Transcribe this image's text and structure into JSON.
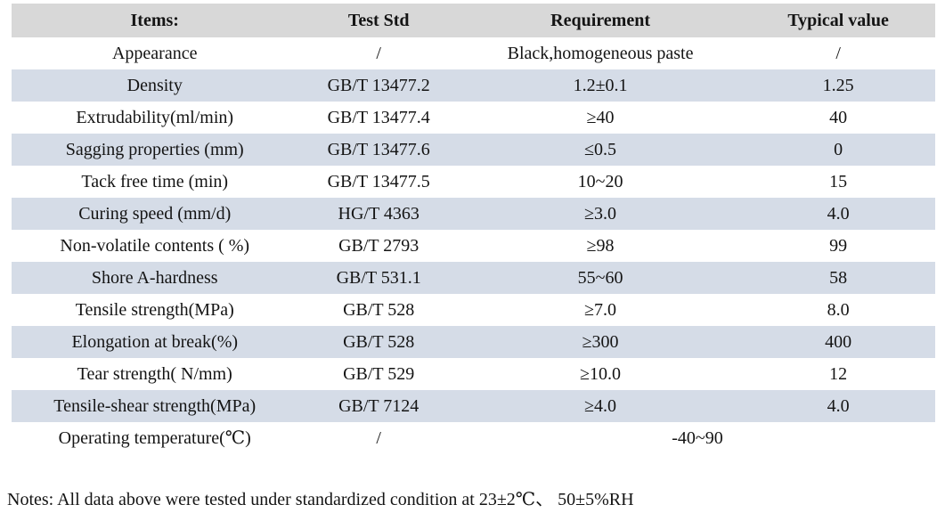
{
  "table": {
    "columns": [
      {
        "label": "Items:"
      },
      {
        "label": "Test Std"
      },
      {
        "label": "Requirement"
      },
      {
        "label": "Typical value"
      }
    ],
    "rows": [
      {
        "cells": [
          "Appearance",
          "/",
          "Black,homogeneous paste",
          "/"
        ]
      },
      {
        "cells": [
          "Density",
          "GB/T 13477.2",
          "1.2±0.1",
          "1.25"
        ]
      },
      {
        "cells": [
          "Extrudability(ml/min)",
          "GB/T 13477.4",
          "≥40",
          "40"
        ]
      },
      {
        "cells": [
          "Sagging properties (mm)",
          "GB/T 13477.6",
          "≤0.5",
          "0"
        ]
      },
      {
        "cells": [
          "Tack free time (min)",
          "GB/T 13477.5",
          "10~20",
          "15"
        ]
      },
      {
        "cells": [
          "Curing speed (mm/d)",
          "HG/T 4363",
          "≥3.0",
          "4.0"
        ]
      },
      {
        "cells": [
          "Non-volatile contents ( %)",
          "GB/T 2793",
          "≥98",
          "99"
        ]
      },
      {
        "cells": [
          "Shore A-hardness",
          "GB/T 531.1",
          "55~60",
          "58"
        ]
      },
      {
        "cells": [
          "Tensile strength(MPa)",
          "GB/T 528",
          "≥7.0",
          "8.0"
        ]
      },
      {
        "cells": [
          "Elongation at break(%)",
          "GB/T 528",
          "≥300",
          "400"
        ]
      },
      {
        "cells": [
          "Tear strength( N/mm)",
          "GB/T 529",
          "≥10.0",
          "12"
        ]
      },
      {
        "cells": [
          "Tensile-shear strength(MPa)",
          "GB/T 7124",
          "≥4.0",
          "4.0"
        ]
      },
      {
        "cells": [
          "Operating temperature(℃)",
          "/",
          "-40~90"
        ],
        "spans": [
          1,
          1,
          2
        ]
      }
    ],
    "colors": {
      "header_bg": "#d8d8d8",
      "stripe_bg": "#d5dce7",
      "row_bg": "#ffffff",
      "text": "#141414"
    }
  },
  "notes": {
    "text": "Notes: All data above were tested under standardized condition at 23±2℃、 50±5%RH"
  }
}
